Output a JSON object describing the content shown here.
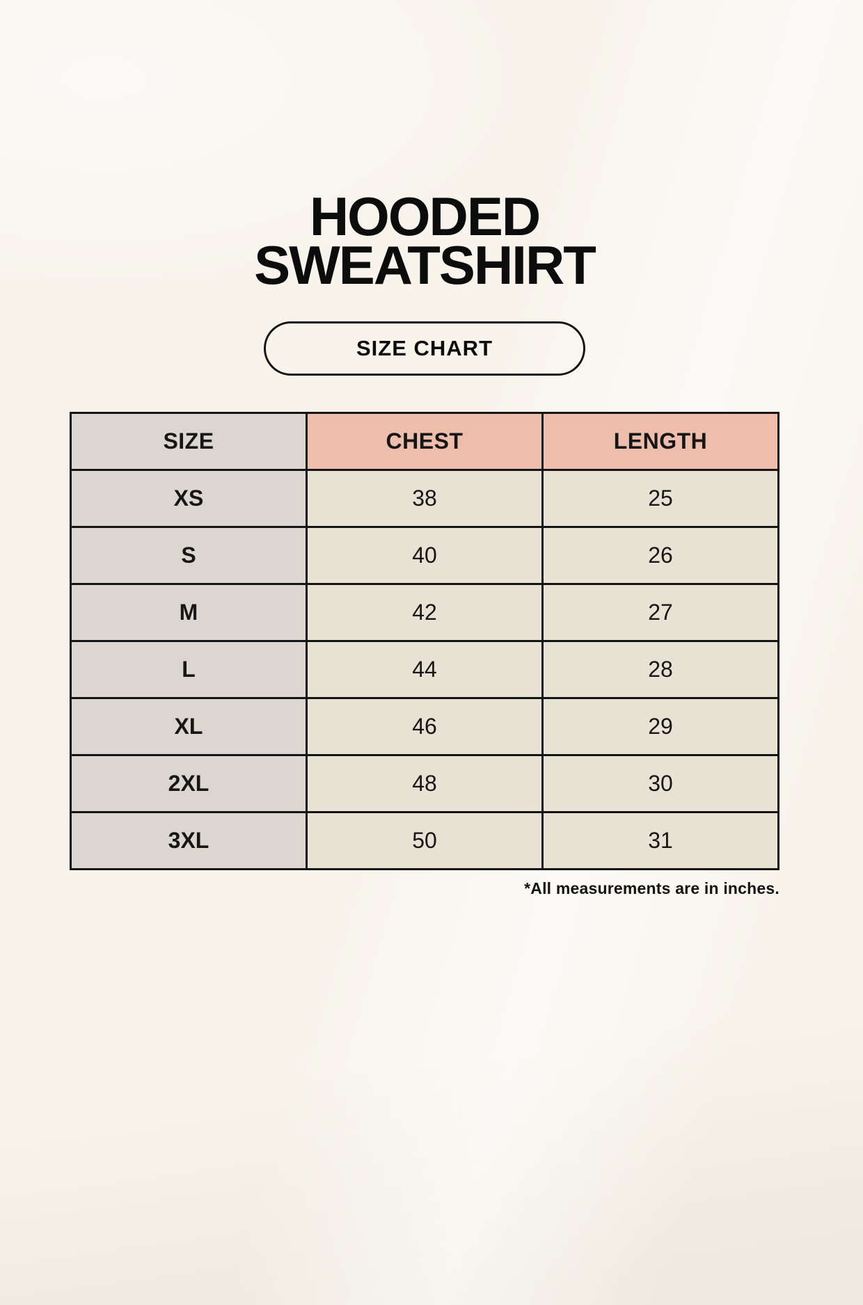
{
  "page": {
    "title_lines": [
      "HOODED",
      "SWEATSHIRT"
    ],
    "badge_label": "SIZE CHART",
    "footnote": "*All measurements are in inches."
  },
  "table": {
    "headers": [
      "SIZE",
      "CHEST",
      "LENGTH"
    ],
    "rows": [
      {
        "size": "XS",
        "chest": "38",
        "length": "25"
      },
      {
        "size": "S",
        "chest": "40",
        "length": "26"
      },
      {
        "size": "M",
        "chest": "42",
        "length": "27"
      },
      {
        "size": "L",
        "chest": "44",
        "length": "28"
      },
      {
        "size": "XL",
        "chest": "46",
        "length": "29"
      },
      {
        "size": "2XL",
        "chest": "48",
        "length": "30"
      },
      {
        "size": "3XL",
        "chest": "50",
        "length": "31"
      }
    ]
  },
  "chart_data": {
    "type": "table",
    "title": "HOODED SWEATSHIRT SIZE CHART",
    "columns": [
      "SIZE",
      "CHEST",
      "LENGTH"
    ],
    "rows": [
      [
        "XS",
        38,
        25
      ],
      [
        "S",
        40,
        26
      ],
      [
        "M",
        42,
        27
      ],
      [
        "L",
        44,
        28
      ],
      [
        "XL",
        46,
        29
      ],
      [
        "2XL",
        48,
        30
      ],
      [
        "3XL",
        50,
        31
      ]
    ],
    "units": "inches",
    "note": "*All measurements are in inches."
  },
  "colors": {
    "background": "#f8f4ec",
    "cell_taupe": "#dcd6d0",
    "header_salmon": "#eebdab",
    "cell_cream": "#e8e2d5",
    "border": "#141414",
    "text": "#121212"
  }
}
